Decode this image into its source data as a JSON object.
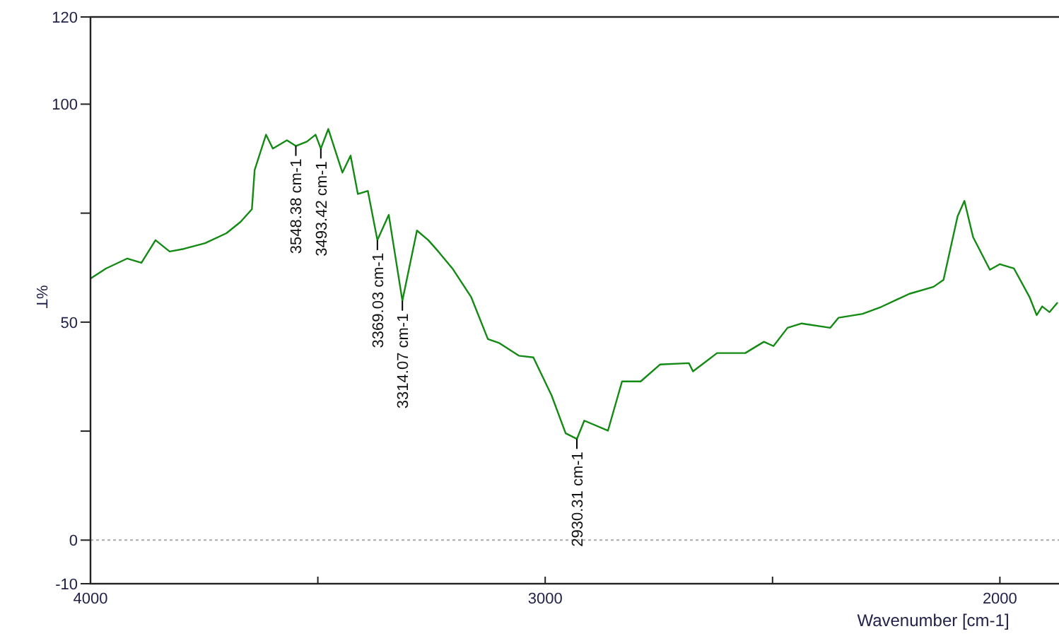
{
  "chart_data": {
    "type": "line",
    "xlabel": "Wavenumber [cm-1]",
    "ylabel": "%T",
    "xlim": [
      4000,
      1870
    ],
    "ylim": [
      -10,
      120
    ],
    "xticks": [
      4000,
      {
        "value": 3500,
        "label": null
      },
      3000,
      {
        "value": 2500,
        "label": null
      },
      2000
    ],
    "yticks": [
      -10,
      0,
      {
        "value": 25,
        "label": null
      },
      50,
      {
        "value": 75,
        "label": null
      },
      100,
      120
    ],
    "series": [
      {
        "color": "#138a13",
        "x": [
          4000,
          3966,
          3919,
          3888,
          3857,
          3826,
          3795,
          3748,
          3701,
          3670,
          3645,
          3639,
          3614,
          3599,
          3568,
          3548.38,
          3524,
          3505,
          3493.42,
          3477,
          3446,
          3428,
          3412,
          3390,
          3369.03,
          3344,
          3314.07,
          3282,
          3257,
          3235,
          3204,
          3163,
          3126,
          3101,
          3058,
          3026,
          2986,
          2955,
          2930.31,
          2914,
          2862,
          2831,
          2790,
          2747,
          2684,
          2675,
          2622,
          2560,
          2519,
          2498,
          2467,
          2436,
          2373,
          2355,
          2302,
          2261,
          2199,
          2146,
          2124,
          2093,
          2078,
          2059,
          2022,
          2000,
          1969,
          1935,
          1919,
          1907,
          1891,
          1873
        ],
        "values": [
          60.0,
          62.3,
          64.6,
          63.6,
          68.8,
          66.2,
          66.8,
          68.1,
          70.4,
          73.0,
          75.9,
          84.9,
          93.0,
          89.8,
          91.7,
          90.4,
          91.4,
          93.0,
          89.8,
          94.3,
          84.3,
          88.2,
          79.4,
          80.1,
          68.8,
          74.6,
          54.9,
          71.0,
          68.8,
          66.2,
          62.3,
          55.8,
          46.1,
          45.2,
          42.3,
          41.9,
          33.2,
          24.5,
          23.2,
          27.4,
          25.1,
          36.4,
          36.4,
          40.3,
          40.6,
          38.7,
          42.9,
          42.9,
          45.5,
          44.5,
          48.7,
          49.7,
          48.7,
          51.0,
          51.9,
          53.5,
          56.5,
          58.1,
          59.7,
          74.3,
          77.8,
          69.5,
          62.0,
          63.3,
          62.3,
          55.8,
          51.6,
          53.6,
          52.3,
          54.5
        ]
      }
    ],
    "ref_lines": [
      {
        "axis": "y",
        "value": 0,
        "color": "#aaaaaa",
        "line_style": "dotted"
      }
    ],
    "annotations": [
      {
        "text": "3548.38 cm-1",
        "x": 3548.38,
        "y": 90.4
      },
      {
        "text": "3493.42 cm-1",
        "x": 3493.42,
        "y": 89.8
      },
      {
        "text": "3369.03 cm-1",
        "x": 3369.03,
        "y": 68.8
      },
      {
        "text": "3314.07 cm-1",
        "x": 3314.07,
        "y": 54.9
      },
      {
        "text": "2930.31 cm-1",
        "x": 2930.31,
        "y": 23.2
      }
    ]
  }
}
